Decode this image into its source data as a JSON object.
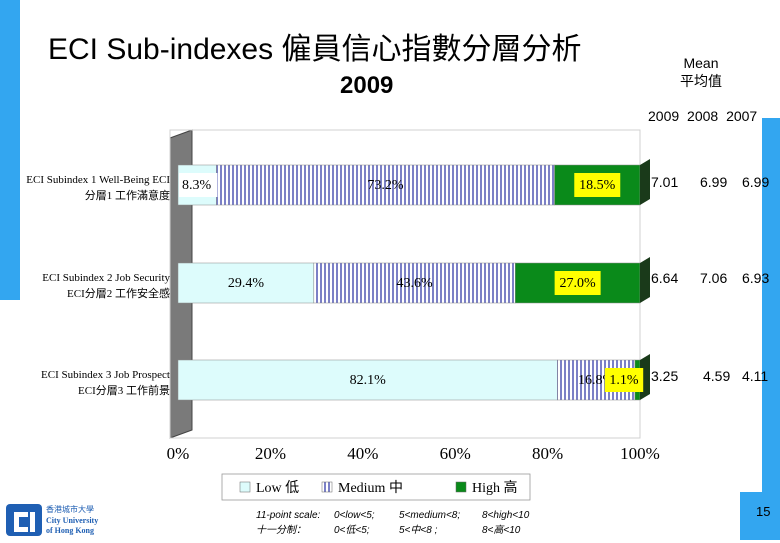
{
  "title": "ECI Sub-indexes 僱員信心指數分層分析",
  "year": "2009",
  "mean_header": {
    "line1": "Mean",
    "line2": "平均值"
  },
  "year_columns": "2009  2008  2007",
  "means": [
    {
      "y2009": "7.01",
      "y2008": "6.99",
      "y2007": "6.99"
    },
    {
      "y2009": "6.64",
      "y2008": "7.06",
      "y2007": "6.93"
    },
    {
      "y2009": "3.25",
      "y2008": "4.59",
      "y2007": "4.11"
    }
  ],
  "page_number": "15",
  "logo": {
    "line1": "香港城市大學",
    "line2": "City University",
    "line3": "of Hong Kong"
  },
  "scale_note": {
    "en_prefix": "11-point scale:",
    "en_low": "0<low<5;",
    "en_medium": "5<medium<8;",
    "en_high": "8<high<10",
    "zh_prefix": "十一分制：",
    "zh_low": "0<低<5;",
    "zh_medium": "5<中<8 ;",
    "zh_high": "8<高<10"
  },
  "colors": {
    "low": "#ddfcfc",
    "medium": "#7b80c6",
    "high": "#0a8a1a",
    "label_box": "#ffff00",
    "accent": "#33a6f0"
  },
  "chart_data": {
    "type": "bar",
    "orientation": "horizontal",
    "stacked": true,
    "categories": [
      {
        "en": "ECI Subindex 1 Well-Being ECI",
        "zh": "分層1 工作滿意度"
      },
      {
        "en": "ECI Subindex 2 Job Security",
        "zh": "ECI分層2 工作安全感"
      },
      {
        "en": "ECI Subindex 3 Job Prospect",
        "zh": "ECI分層3 工作前景"
      }
    ],
    "series": [
      {
        "name": "Low 低",
        "values": [
          8.3,
          29.4,
          82.1
        ],
        "labels": [
          "8.3%",
          "29.4%",
          "82.1%"
        ]
      },
      {
        "name": "Medium 中",
        "values": [
          73.2,
          43.6,
          16.8
        ],
        "labels": [
          "73.2%",
          "43.6%",
          "16.8%"
        ]
      },
      {
        "name": "High 高",
        "values": [
          18.5,
          27.0,
          1.1
        ],
        "labels": [
          "18.5%",
          "27.0%",
          "1.1%"
        ]
      }
    ],
    "x_ticks": [
      "0%",
      "20%",
      "40%",
      "60%",
      "80%",
      "100%"
    ],
    "xlim": [
      0,
      100
    ],
    "legend": "bottom"
  }
}
